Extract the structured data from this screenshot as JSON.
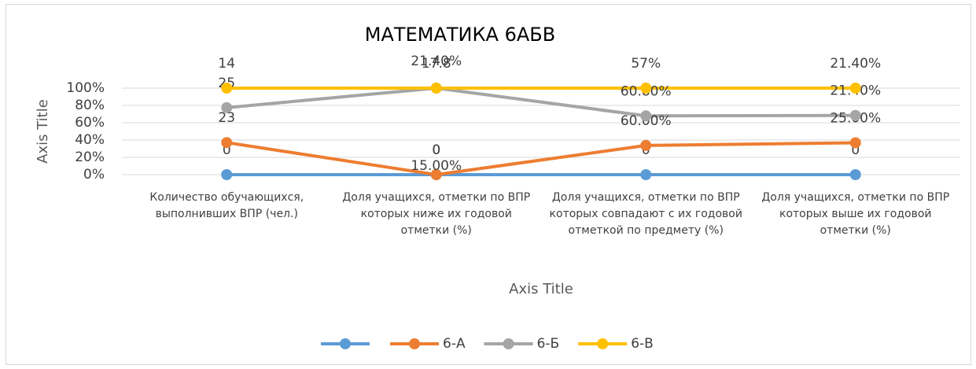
{
  "chart_data": {
    "type": "line",
    "stacked_percent": true,
    "title": "МАТЕМАТИКА   6АБВ",
    "x_label": "Axis Title",
    "y_label": "Axis Title",
    "categories": [
      "Количество обучающихся, выполнивших  ВПР (чел.)",
      "Доля учащихся, отметки по ВПР которых  ниже их годовой отметки (%)",
      "Доля учащихся, отметки по ВПР которых совпадают с их годовой отметкой по предмету (%)",
      "Доля учащихся, отметки по ВПР которых выше их годовой отметки (%)"
    ],
    "series": [
      {
        "color": "#5b9bd5",
        "values": [
          0,
          0,
          0,
          0
        ]
      },
      {
        "name": "6-А",
        "color": "#ed7d31",
        "values": [
          23,
          0,
          60,
          25
        ],
        "value_labels": [
          "23",
          "0",
          "60.00%",
          "25.00%"
        ]
      },
      {
        "name": "6-Б",
        "color": "#a5a5a5",
        "values": [
          25,
          17.8,
          60.8,
          21.4
        ],
        "value_labels": [
          "25",
          "17.8",
          "60.80%",
          "21.40%"
        ]
      },
      {
        "name": "6-В",
        "color": "#ffc000",
        "values": [
          14,
          0,
          57,
          21.4
        ],
        "value_labels": [
          "14",
          null,
          "57%",
          "21.40%"
        ]
      }
    ],
    "annotations": [
      "21.40%",
      "15.00%"
    ],
    "ylim": [
      0,
      100
    ],
    "yticks": [
      {
        "value": 0,
        "label": "0%"
      },
      {
        "value": 20,
        "label": "20%"
      },
      {
        "value": 40,
        "label": "40%"
      },
      {
        "value": 60,
        "label": "60%"
      },
      {
        "value": 80,
        "label": "80%"
      },
      {
        "value": 100,
        "label": "100%"
      }
    ],
    "grid": true,
    "legend": "bottom"
  }
}
